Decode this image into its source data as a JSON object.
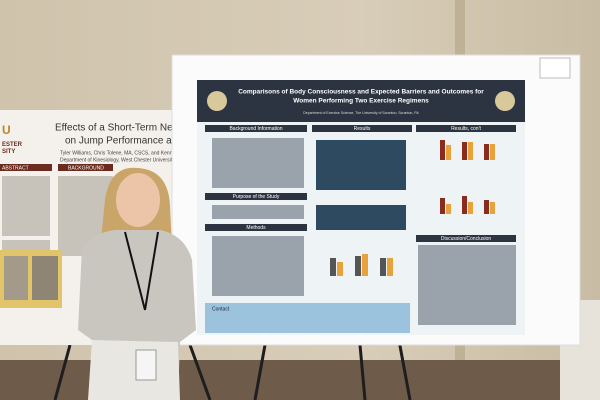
{
  "left_poster": {
    "university": "U",
    "university_line": "ESTER\nSITY",
    "title_lines": [
      "Effects of a Short-Term Neuromuscular",
      "on Jump Performance and Landing"
    ],
    "authors": "Tyler Williams, Chris Tolene, MA, CSCS, and Kenneth",
    "department": "Department of Kinesiology, West Chester University",
    "sections": [
      "ABSTRACT",
      "BACKGROUND"
    ]
  },
  "right_poster": {
    "title_lines": [
      "Comparisons of Body Consciousness and Expected Barriers and Outcomes for",
      "Women Performing Two Exercise Regimens"
    ],
    "department": "Department of Exercise Science, The University of Scranton, Scranton, PA",
    "left_sections": [
      "Background Information",
      "Purpose of the Study",
      "Methods"
    ],
    "middle_sections": [
      "Results"
    ],
    "right_sections": [
      "Results, con't",
      "Discussion/Conclusion"
    ],
    "contact": "Contact"
  }
}
